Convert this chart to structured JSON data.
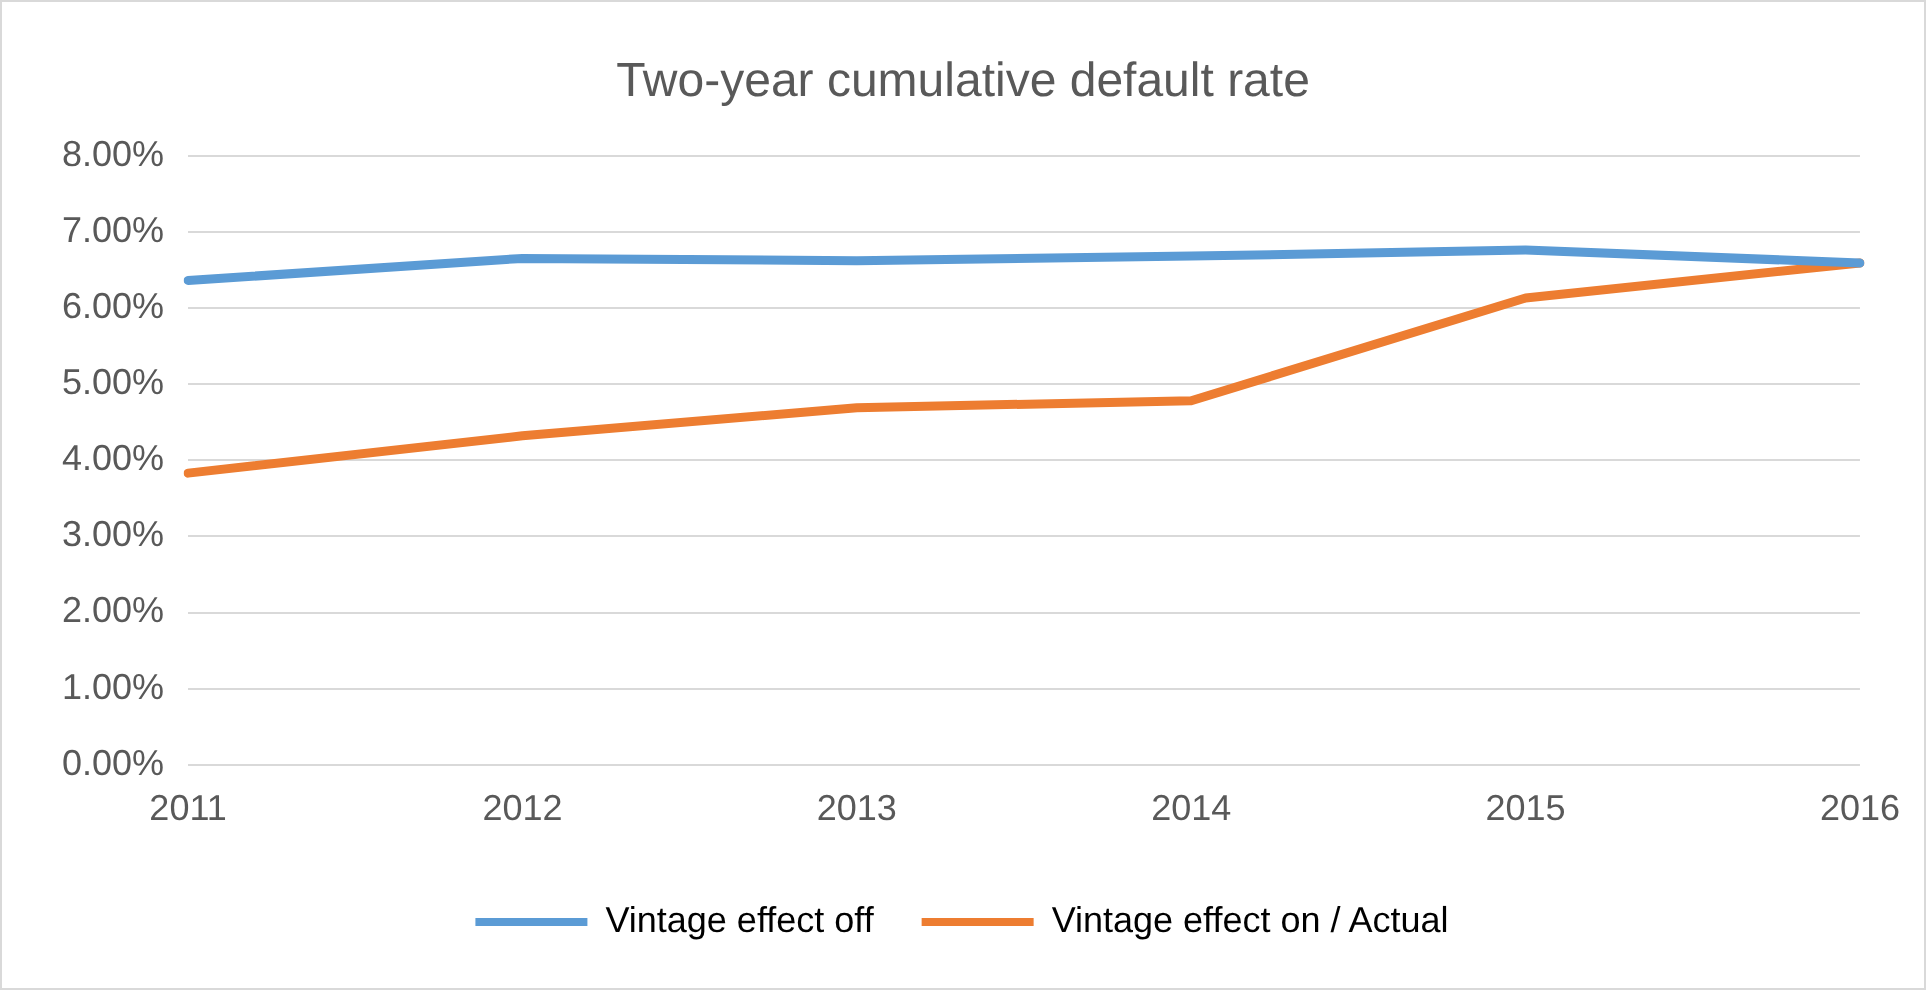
{
  "chart_data": {
    "type": "line",
    "title": "Two-year cumulative default rate",
    "categories": [
      "2011",
      "2012",
      "2013",
      "2014",
      "2015",
      "2016"
    ],
    "series": [
      {
        "name": "Vintage effect off",
        "color": "#5b9bd5",
        "values": [
          6.36,
          6.65,
          6.62,
          6.68,
          6.76,
          6.59
        ]
      },
      {
        "name": "Vintage effect on / Actual",
        "color": "#ed7d31",
        "values": [
          3.83,
          4.32,
          4.69,
          4.78,
          6.13,
          6.59
        ]
      }
    ],
    "ylim": [
      0,
      8
    ],
    "yticks": [
      {
        "value": 0,
        "label": "0.00%"
      },
      {
        "value": 1,
        "label": "1.00%"
      },
      {
        "value": 2,
        "label": "2.00%"
      },
      {
        "value": 3,
        "label": "3.00%"
      },
      {
        "value": 4,
        "label": "4.00%"
      },
      {
        "value": 5,
        "label": "5.00%"
      },
      {
        "value": 6,
        "label": "6.00%"
      },
      {
        "value": 7,
        "label": "7.00%"
      },
      {
        "value": 8,
        "label": "8.00%"
      }
    ],
    "grid": "y",
    "legend": "bottom",
    "marker": "none",
    "line_style": "solid"
  }
}
